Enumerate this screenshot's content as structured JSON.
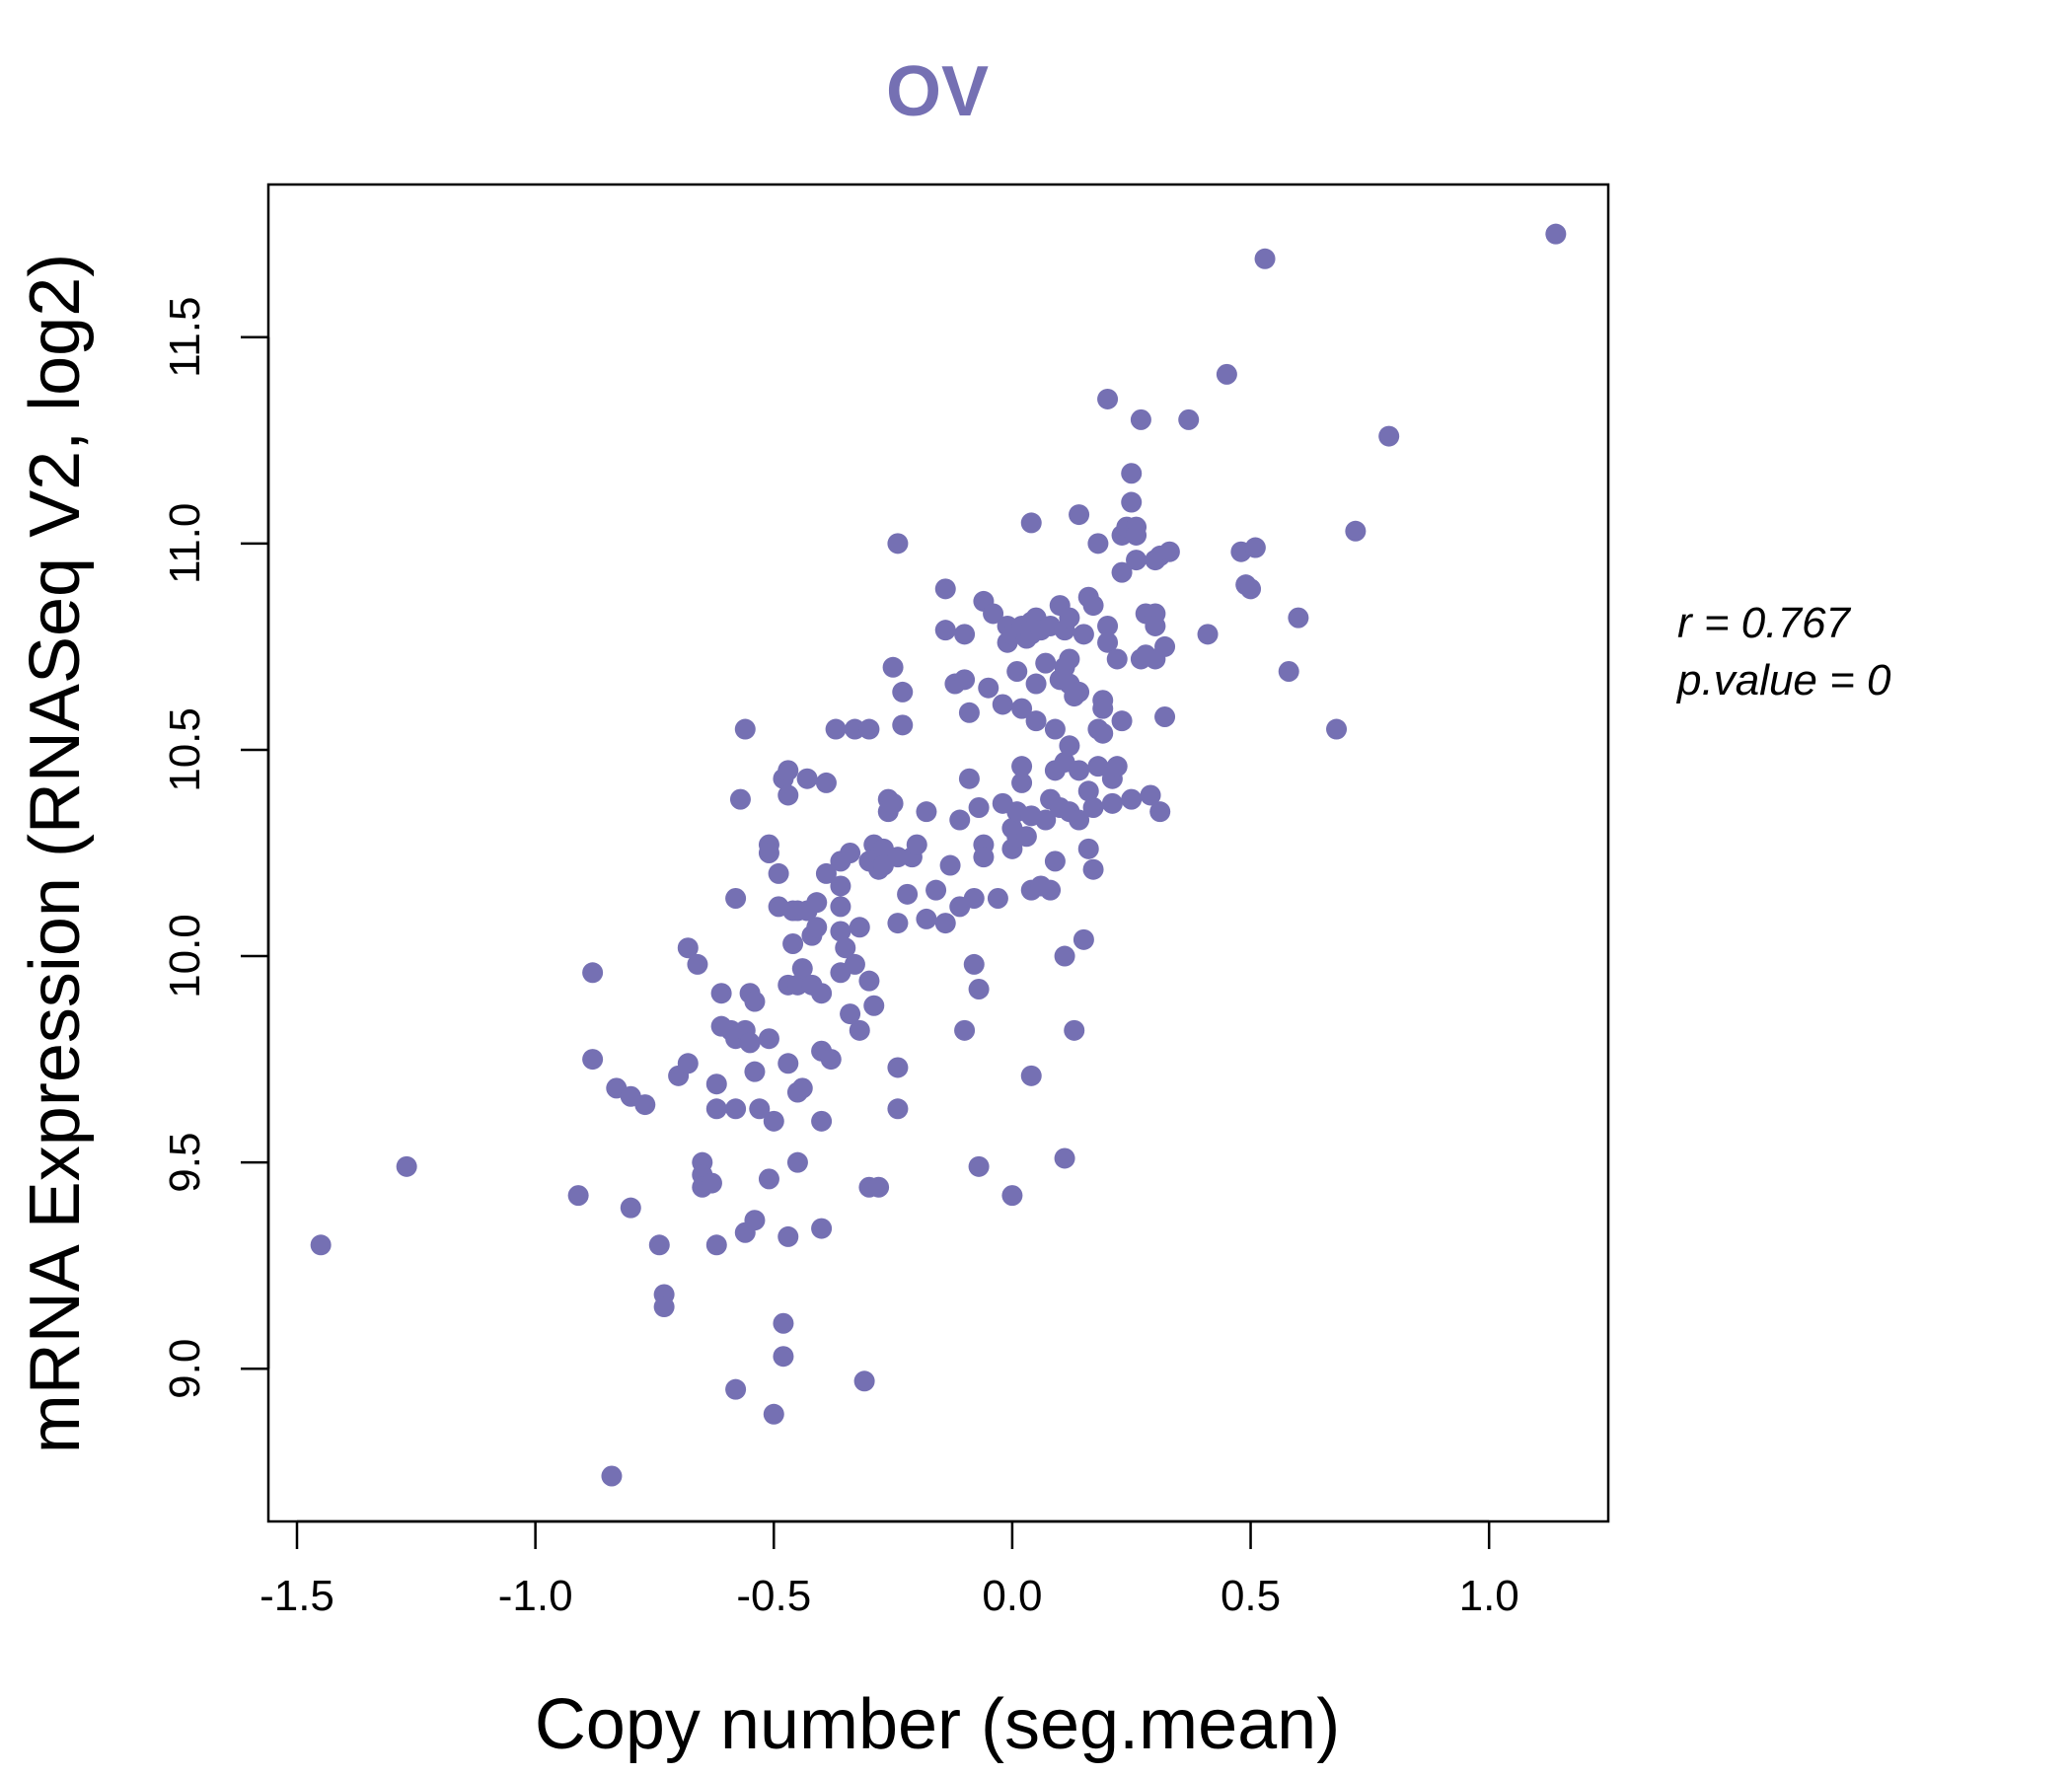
{
  "chart_data": {
    "type": "scatter",
    "title": "OV",
    "xlabel": "Copy number (seg.mean)",
    "ylabel": "mRNA Expression (RNASeq V2, log2)",
    "xlim": [
      -1.56,
      1.25
    ],
    "ylim": [
      8.63,
      11.87
    ],
    "x_ticks": [
      "-1.5",
      "-1.0",
      "-0.5",
      "0.0",
      "0.5",
      "1.0"
    ],
    "y_ticks": [
      "9.0",
      "9.5",
      "10.0",
      "10.5",
      "11.0",
      "11.5"
    ],
    "stats": {
      "r_label": "r = 0.767",
      "p_label": "p.value = 0"
    },
    "point_color": "#7570b3",
    "points": [
      [
        -1.45,
        9.3
      ],
      [
        -1.27,
        9.49
      ],
      [
        -0.91,
        9.42
      ],
      [
        -0.88,
        9.96
      ],
      [
        -0.88,
        9.75
      ],
      [
        -0.84,
        8.74
      ],
      [
        -0.83,
        9.68
      ],
      [
        -0.8,
        9.66
      ],
      [
        -0.8,
        9.39
      ],
      [
        -0.77,
        9.64
      ],
      [
        -0.74,
        9.3
      ],
      [
        -0.73,
        9.18
      ],
      [
        -0.73,
        9.15
      ],
      [
        -0.7,
        9.71
      ],
      [
        -0.68,
        9.74
      ],
      [
        -0.68,
        10.02
      ],
      [
        -0.66,
        9.98
      ],
      [
        -0.65,
        9.5
      ],
      [
        -0.65,
        9.47
      ],
      [
        -0.65,
        9.44
      ],
      [
        -0.63,
        9.45
      ],
      [
        -0.62,
        9.69
      ],
      [
        -0.62,
        9.63
      ],
      [
        -0.62,
        9.3
      ],
      [
        -0.61,
        9.91
      ],
      [
        -0.61,
        9.83
      ],
      [
        -0.59,
        9.82
      ],
      [
        -0.58,
        10.14
      ],
      [
        -0.58,
        9.63
      ],
      [
        -0.58,
        9.8
      ],
      [
        -0.58,
        8.95
      ],
      [
        -0.57,
        10.38
      ],
      [
        -0.56,
        10.55
      ],
      [
        -0.56,
        9.82
      ],
      [
        -0.56,
        9.33
      ],
      [
        -0.55,
        9.91
      ],
      [
        -0.55,
        9.79
      ],
      [
        -0.54,
        9.89
      ],
      [
        -0.54,
        9.72
      ],
      [
        -0.54,
        9.36
      ],
      [
        -0.53,
        9.63
      ],
      [
        -0.51,
        9.46
      ],
      [
        -0.51,
        10.27
      ],
      [
        -0.51,
        10.25
      ],
      [
        -0.51,
        9.8
      ],
      [
        -0.5,
        9.6
      ],
      [
        -0.5,
        8.89
      ],
      [
        -0.49,
        10.2
      ],
      [
        -0.49,
        10.12
      ],
      [
        -0.48,
        10.43
      ],
      [
        -0.48,
        9.03
      ],
      [
        -0.48,
        9.11
      ],
      [
        -0.47,
        10.45
      ],
      [
        -0.47,
        10.39
      ],
      [
        -0.47,
        9.93
      ],
      [
        -0.47,
        9.74
      ],
      [
        -0.47,
        9.32
      ],
      [
        -0.46,
        10.11
      ],
      [
        -0.46,
        10.03
      ],
      [
        -0.45,
        10.11
      ],
      [
        -0.45,
        9.93
      ],
      [
        -0.45,
        9.67
      ],
      [
        -0.45,
        9.5
      ],
      [
        -0.44,
        9.97
      ],
      [
        -0.44,
        9.68
      ],
      [
        -0.43,
        10.43
      ],
      [
        -0.43,
        10.11
      ],
      [
        -0.42,
        10.05
      ],
      [
        -0.42,
        9.93
      ],
      [
        -0.41,
        10.13
      ],
      [
        -0.41,
        10.07
      ],
      [
        -0.4,
        9.91
      ],
      [
        -0.4,
        9.77
      ],
      [
        -0.4,
        9.6
      ],
      [
        -0.4,
        9.34
      ],
      [
        -0.39,
        10.42
      ],
      [
        -0.39,
        10.2
      ],
      [
        -0.38,
        9.75
      ],
      [
        -0.37,
        10.55
      ],
      [
        -0.36,
        10.23
      ],
      [
        -0.36,
        10.17
      ],
      [
        -0.36,
        10.12
      ],
      [
        -0.36,
        10.06
      ],
      [
        -0.36,
        9.96
      ],
      [
        -0.35,
        10.02
      ],
      [
        -0.34,
        10.25
      ],
      [
        -0.34,
        9.86
      ],
      [
        -0.33,
        10.55
      ],
      [
        -0.33,
        9.98
      ],
      [
        -0.32,
        10.07
      ],
      [
        -0.32,
        9.82
      ],
      [
        -0.31,
        8.97
      ],
      [
        -0.3,
        10.55
      ],
      [
        -0.3,
        10.23
      ],
      [
        -0.3,
        9.94
      ],
      [
        -0.3,
        9.44
      ],
      [
        -0.29,
        10.27
      ],
      [
        -0.29,
        9.88
      ],
      [
        -0.28,
        10.24
      ],
      [
        -0.28,
        10.21
      ],
      [
        -0.28,
        9.44
      ],
      [
        -0.27,
        10.26
      ],
      [
        -0.27,
        10.22
      ],
      [
        -0.26,
        10.35
      ],
      [
        -0.26,
        10.38
      ],
      [
        -0.25,
        10.7
      ],
      [
        -0.25,
        10.37
      ],
      [
        -0.24,
        11.0
      ],
      [
        -0.24,
        10.24
      ],
      [
        -0.24,
        10.08
      ],
      [
        -0.24,
        9.73
      ],
      [
        -0.24,
        9.63
      ],
      [
        -0.23,
        10.64
      ],
      [
        -0.23,
        10.56
      ],
      [
        -0.22,
        10.15
      ],
      [
        -0.21,
        10.24
      ],
      [
        -0.2,
        10.27
      ],
      [
        -0.18,
        10.09
      ],
      [
        -0.18,
        10.35
      ],
      [
        -0.16,
        10.16
      ],
      [
        -0.14,
        10.89
      ],
      [
        -0.14,
        10.79
      ],
      [
        -0.14,
        10.08
      ],
      [
        -0.13,
        10.22
      ],
      [
        -0.12,
        10.66
      ],
      [
        -0.11,
        10.12
      ],
      [
        -0.11,
        10.33
      ],
      [
        -0.1,
        10.78
      ],
      [
        -0.1,
        10.67
      ],
      [
        -0.1,
        9.82
      ],
      [
        -0.09,
        10.59
      ],
      [
        -0.09,
        10.43
      ],
      [
        -0.08,
        10.14
      ],
      [
        -0.08,
        9.98
      ],
      [
        -0.07,
        10.36
      ],
      [
        -0.07,
        9.92
      ],
      [
        -0.07,
        9.49
      ],
      [
        -0.06,
        10.27
      ],
      [
        -0.06,
        10.24
      ],
      [
        -0.06,
        10.86
      ],
      [
        -0.05,
        10.65
      ],
      [
        -0.04,
        10.83
      ],
      [
        -0.03,
        10.14
      ],
      [
        -0.02,
        10.37
      ],
      [
        -0.02,
        10.61
      ],
      [
        -0.01,
        10.8
      ],
      [
        -0.01,
        10.76
      ],
      [
        0.0,
        10.78
      ],
      [
        0.0,
        10.31
      ],
      [
        0.0,
        10.26
      ],
      [
        0.0,
        9.42
      ],
      [
        0.01,
        10.35
      ],
      [
        0.01,
        10.29
      ],
      [
        0.01,
        10.69
      ],
      [
        0.02,
        10.8
      ],
      [
        0.02,
        10.46
      ],
      [
        0.02,
        10.42
      ],
      [
        0.02,
        10.6
      ],
      [
        0.03,
        10.29
      ],
      [
        0.03,
        10.77
      ],
      [
        0.04,
        10.81
      ],
      [
        0.04,
        11.05
      ],
      [
        0.04,
        10.16
      ],
      [
        0.04,
        10.34
      ],
      [
        0.04,
        10.78
      ],
      [
        0.04,
        9.71
      ],
      [
        0.05,
        10.82
      ],
      [
        0.05,
        10.66
      ],
      [
        0.05,
        10.57
      ],
      [
        0.06,
        10.79
      ],
      [
        0.06,
        10.17
      ],
      [
        0.07,
        10.33
      ],
      [
        0.07,
        10.71
      ],
      [
        0.08,
        10.8
      ],
      [
        0.08,
        10.38
      ],
      [
        0.08,
        10.16
      ],
      [
        0.09,
        10.55
      ],
      [
        0.09,
        10.45
      ],
      [
        0.09,
        10.23
      ],
      [
        0.1,
        10.85
      ],
      [
        0.1,
        10.67
      ],
      [
        0.1,
        10.36
      ],
      [
        0.11,
        10.79
      ],
      [
        0.11,
        10.7
      ],
      [
        0.11,
        10.47
      ],
      [
        0.11,
        10.0
      ],
      [
        0.11,
        9.51
      ],
      [
        0.12,
        10.82
      ],
      [
        0.12,
        10.72
      ],
      [
        0.12,
        10.66
      ],
      [
        0.12,
        10.51
      ],
      [
        0.12,
        10.35
      ],
      [
        0.13,
        10.63
      ],
      [
        0.13,
        9.82
      ],
      [
        0.14,
        11.07
      ],
      [
        0.14,
        10.64
      ],
      [
        0.14,
        10.45
      ],
      [
        0.14,
        10.33
      ],
      [
        0.15,
        10.04
      ],
      [
        0.15,
        10.78
      ],
      [
        0.16,
        10.87
      ],
      [
        0.16,
        10.4
      ],
      [
        0.16,
        10.26
      ],
      [
        0.17,
        10.85
      ],
      [
        0.17,
        10.36
      ],
      [
        0.17,
        10.21
      ],
      [
        0.18,
        11.0
      ],
      [
        0.18,
        10.55
      ],
      [
        0.18,
        10.46
      ],
      [
        0.19,
        10.62
      ],
      [
        0.19,
        10.54
      ],
      [
        0.19,
        10.6
      ],
      [
        0.2,
        11.35
      ],
      [
        0.2,
        10.8
      ],
      [
        0.2,
        10.76
      ],
      [
        0.21,
        10.43
      ],
      [
        0.21,
        10.37
      ],
      [
        0.22,
        10.72
      ],
      [
        0.22,
        10.46
      ],
      [
        0.23,
        11.02
      ],
      [
        0.23,
        10.93
      ],
      [
        0.23,
        10.57
      ],
      [
        0.24,
        11.04
      ],
      [
        0.25,
        11.17
      ],
      [
        0.25,
        11.1
      ],
      [
        0.25,
        10.38
      ],
      [
        0.26,
        11.04
      ],
      [
        0.26,
        10.96
      ],
      [
        0.26,
        11.02
      ],
      [
        0.27,
        11.3
      ],
      [
        0.27,
        10.72
      ],
      [
        0.28,
        10.83
      ],
      [
        0.28,
        10.73
      ],
      [
        0.29,
        10.39
      ],
      [
        0.3,
        10.83
      ],
      [
        0.3,
        10.8
      ],
      [
        0.3,
        10.72
      ],
      [
        0.3,
        10.96
      ],
      [
        0.31,
        10.97
      ],
      [
        0.31,
        10.35
      ],
      [
        0.32,
        10.75
      ],
      [
        0.32,
        10.58
      ],
      [
        0.33,
        10.98
      ],
      [
        0.37,
        11.3
      ],
      [
        0.41,
        10.78
      ],
      [
        0.45,
        11.41
      ],
      [
        0.48,
        10.98
      ],
      [
        0.49,
        10.9
      ],
      [
        0.5,
        10.89
      ],
      [
        0.51,
        10.99
      ],
      [
        0.53,
        11.69
      ],
      [
        0.58,
        10.69
      ],
      [
        0.6,
        10.82
      ],
      [
        0.68,
        10.55
      ],
      [
        0.72,
        11.03
      ],
      [
        0.79,
        11.26
      ],
      [
        1.14,
        11.75
      ]
    ]
  }
}
